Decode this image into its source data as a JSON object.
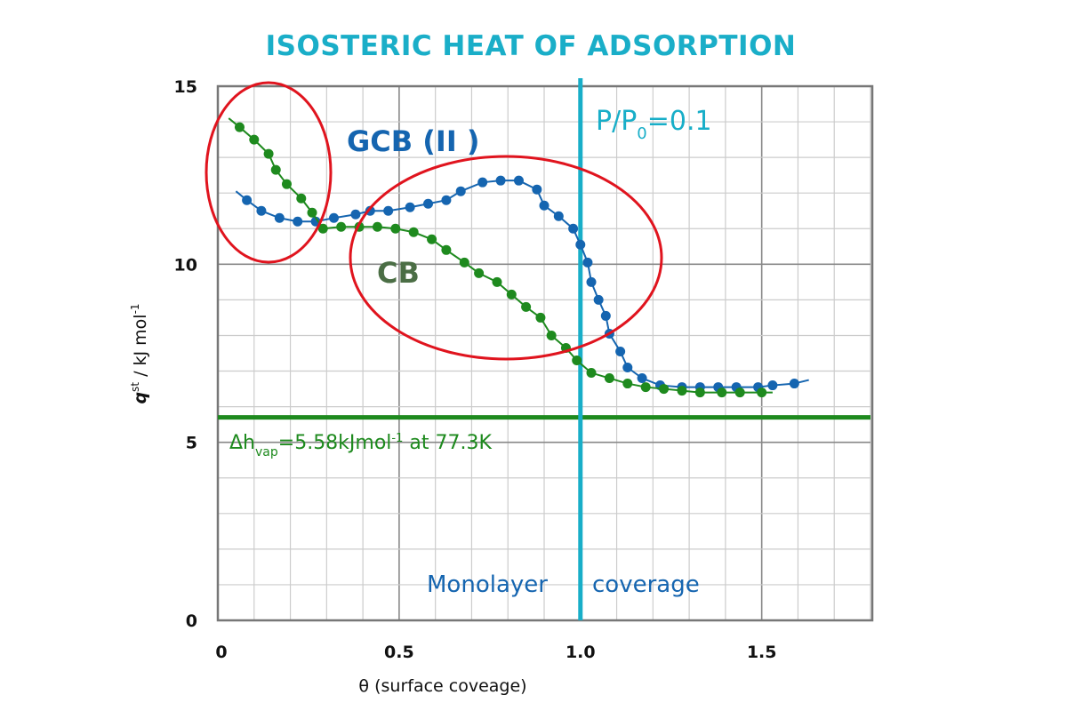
{
  "chart_data": {
    "type": "line",
    "title": "ISOSTERIC HEAT OF ADSORPTION",
    "xlabel": "θ (surface coveage)",
    "ylabel": {
      "main": "q",
      "sup": "st",
      "unit": " / kJ mol",
      "unit_sup": "-1"
    },
    "xlim": [
      0,
      1.8
    ],
    "ylim": [
      0,
      15
    ],
    "x_ticks": [
      "0",
      "0.5",
      "1.0",
      "1.5"
    ],
    "x_tick_values": [
      0,
      0.5,
      1.0,
      1.5
    ],
    "y_ticks": [
      "0",
      "5",
      "10",
      "15"
    ],
    "y_tick_values": [
      0,
      5,
      10,
      15
    ],
    "grid": true,
    "minor_grid": {
      "x_step": 0.1,
      "y_step": 1
    },
    "colors": {
      "gcb": "#1565b0",
      "cb": "#1e8a1e",
      "cyan": "#18aec8",
      "ellipse": "#e0141e"
    },
    "series": [
      {
        "name": "GCB (II )",
        "color": "#1565b0",
        "line_start": [
          0.05,
          12.05
        ],
        "line_end": [
          1.63,
          6.75
        ],
        "x": [
          0.08,
          0.12,
          0.17,
          0.22,
          0.27,
          0.32,
          0.38,
          0.42,
          0.47,
          0.53,
          0.58,
          0.63,
          0.67,
          0.73,
          0.78,
          0.83,
          0.88,
          0.9,
          0.94,
          0.98,
          1.0,
          1.02,
          1.03,
          1.05,
          1.07,
          1.08,
          1.11,
          1.13,
          1.17,
          1.22,
          1.28,
          1.33,
          1.38,
          1.43,
          1.49,
          1.53,
          1.59
        ],
        "y": [
          11.8,
          11.5,
          11.3,
          11.2,
          11.2,
          11.3,
          11.4,
          11.5,
          11.5,
          11.6,
          11.7,
          11.8,
          12.05,
          12.3,
          12.35,
          12.35,
          12.1,
          11.65,
          11.35,
          11.0,
          10.55,
          10.05,
          9.5,
          9.0,
          8.55,
          8.05,
          7.55,
          7.1,
          6.8,
          6.6,
          6.55,
          6.55,
          6.55,
          6.55,
          6.55,
          6.6,
          6.65
        ]
      },
      {
        "name": "CB",
        "color": "#1e8a1e",
        "line_start": [
          0.03,
          14.1
        ],
        "line_end": [
          1.53,
          6.4
        ],
        "x": [
          0.06,
          0.1,
          0.14,
          0.16,
          0.19,
          0.23,
          0.26,
          0.29,
          0.34,
          0.39,
          0.44,
          0.49,
          0.54,
          0.59,
          0.63,
          0.68,
          0.72,
          0.77,
          0.81,
          0.85,
          0.89,
          0.92,
          0.96,
          0.99,
          1.03,
          1.08,
          1.13,
          1.18,
          1.23,
          1.28,
          1.33,
          1.39,
          1.44,
          1.5
        ],
        "y": [
          13.85,
          13.5,
          13.1,
          12.65,
          12.25,
          11.85,
          11.45,
          11.0,
          11.05,
          11.05,
          11.05,
          11.0,
          10.9,
          10.7,
          10.4,
          10.05,
          9.75,
          9.5,
          9.15,
          8.8,
          8.5,
          8.0,
          7.65,
          7.3,
          6.95,
          6.8,
          6.65,
          6.55,
          6.5,
          6.45,
          6.4,
          6.4,
          6.4,
          6.4
        ]
      }
    ],
    "reference_lines": {
      "vertical_x": 1.0,
      "horizontal_y": 5.7
    },
    "annotations": {
      "gcb_label": "GCB (II )",
      "cb_label": "CB",
      "pp0": {
        "p": "P/P",
        "sub": "0",
        "rest": "=0.1"
      },
      "monolayer_a": "Monolayer",
      "monolayer_b": "coverage",
      "dh": {
        "delta": "Δh",
        "sub": "vap",
        "mid": "=5.58kJmol",
        "sup": "-1",
        "rest": " at 77.3K"
      }
    }
  }
}
